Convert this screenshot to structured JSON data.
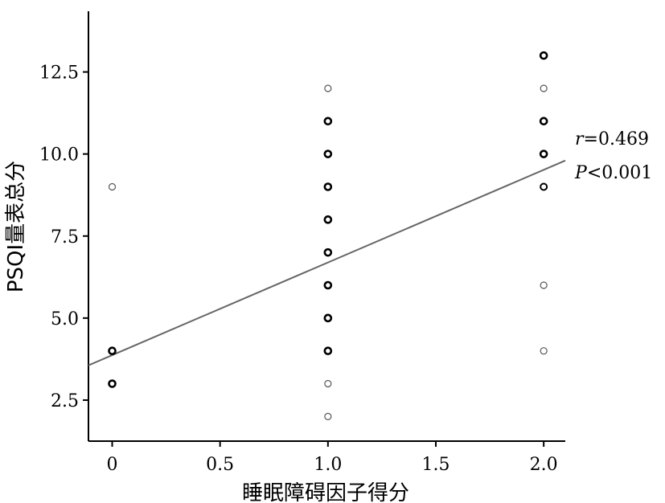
{
  "chart_data": {
    "type": "scatter",
    "xlabel": "睡眠障碍因子得分",
    "ylabel": "PSQI量表总分",
    "xlim": [
      -0.11,
      2.1
    ],
    "ylim": [
      1.25,
      14.35
    ],
    "x_ticks": [
      {
        "value": 0,
        "label": "0"
      },
      {
        "value": 0.5,
        "label": "0.5"
      },
      {
        "value": 1.0,
        "label": "1.0"
      },
      {
        "value": 1.5,
        "label": "1.5"
      },
      {
        "value": 2.0,
        "label": "2.0"
      }
    ],
    "y_ticks": [
      {
        "value": 2.5,
        "label": "2.5"
      },
      {
        "value": 5.0,
        "label": "5.0"
      },
      {
        "value": 7.5,
        "label": "7.5"
      },
      {
        "value": 10.0,
        "label": "10.0"
      },
      {
        "value": 12.5,
        "label": "12.5"
      }
    ],
    "points": [
      {
        "x": 0,
        "y": 9,
        "weight": 1
      },
      {
        "x": 0,
        "y": 4,
        "weight": 3
      },
      {
        "x": 0,
        "y": 3,
        "weight": 3
      },
      {
        "x": 1.0,
        "y": 12,
        "weight": 1
      },
      {
        "x": 1.0,
        "y": 11,
        "weight": 3
      },
      {
        "x": 1.0,
        "y": 10,
        "weight": 3
      },
      {
        "x": 1.0,
        "y": 9,
        "weight": 3
      },
      {
        "x": 1.0,
        "y": 8,
        "weight": 3
      },
      {
        "x": 1.0,
        "y": 7,
        "weight": 3
      },
      {
        "x": 1.0,
        "y": 6,
        "weight": 3
      },
      {
        "x": 1.0,
        "y": 5,
        "weight": 3
      },
      {
        "x": 1.0,
        "y": 4,
        "weight": 3
      },
      {
        "x": 1.0,
        "y": 3,
        "weight": 1
      },
      {
        "x": 1.0,
        "y": 2,
        "weight": 1
      },
      {
        "x": 2.0,
        "y": 13,
        "weight": 3
      },
      {
        "x": 2.0,
        "y": 12,
        "weight": 1
      },
      {
        "x": 2.0,
        "y": 11,
        "weight": 3
      },
      {
        "x": 2.0,
        "y": 10,
        "weight": 3
      },
      {
        "x": 2.0,
        "y": 9,
        "weight": 2
      },
      {
        "x": 2.0,
        "y": 6,
        "weight": 1
      },
      {
        "x": 2.0,
        "y": 4,
        "weight": 1
      }
    ],
    "fit_line": {
      "x": [
        -0.11,
        2.1
      ],
      "y": [
        3.56,
        9.8
      ]
    },
    "annotation": {
      "r_symbol": "r",
      "r_value": "=0.469",
      "p_symbol": "P",
      "p_value": "<0.001"
    },
    "grid": false,
    "legend": "none",
    "colors": {
      "axis": "#000000",
      "marker": "#000000",
      "marker_light": "#555555",
      "fit_line": "#666666"
    }
  }
}
